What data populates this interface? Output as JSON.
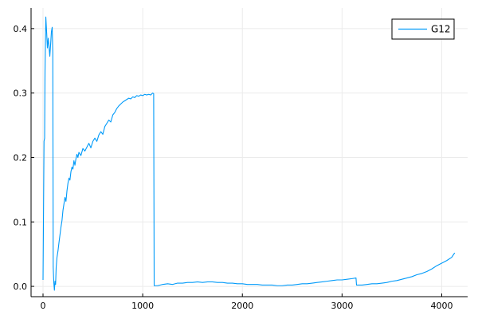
{
  "chart_data": {
    "type": "line",
    "title": "",
    "xlabel": "",
    "ylabel": "",
    "xlim": [
      -120,
      4260
    ],
    "ylim": [
      -0.016,
      0.432
    ],
    "x_ticks": [
      0,
      1000,
      2000,
      3000,
      4000
    ],
    "x_tick_labels": [
      "0",
      "1000",
      "2000",
      "3000",
      "4000"
    ],
    "y_ticks": [
      0.0,
      0.1,
      0.2,
      0.3,
      0.4
    ],
    "y_tick_labels": [
      "0.0",
      "0.1",
      "0.2",
      "0.3",
      "0.4"
    ],
    "grid": true,
    "legend_position": "top-right",
    "series": [
      {
        "name": "G12",
        "color": "#009af9",
        "points": [
          [
            0,
            0.01
          ],
          [
            10,
            0.225
          ],
          [
            16,
            0.23
          ],
          [
            20,
            0.335
          ],
          [
            28,
            0.418
          ],
          [
            36,
            0.395
          ],
          [
            44,
            0.37
          ],
          [
            52,
            0.385
          ],
          [
            60,
            0.372
          ],
          [
            68,
            0.357
          ],
          [
            76,
            0.375
          ],
          [
            84,
            0.395
          ],
          [
            92,
            0.402
          ],
          [
            98,
            0.362
          ],
          [
            102,
            0.03
          ],
          [
            108,
            0.006
          ],
          [
            114,
            -0.006
          ],
          [
            120,
            0.008
          ],
          [
            126,
            0.003
          ],
          [
            132,
            0.03
          ],
          [
            140,
            0.045
          ],
          [
            150,
            0.055
          ],
          [
            160,
            0.068
          ],
          [
            170,
            0.08
          ],
          [
            180,
            0.092
          ],
          [
            190,
            0.102
          ],
          [
            200,
            0.118
          ],
          [
            210,
            0.128
          ],
          [
            220,
            0.138
          ],
          [
            230,
            0.132
          ],
          [
            240,
            0.148
          ],
          [
            250,
            0.16
          ],
          [
            260,
            0.168
          ],
          [
            270,
            0.165
          ],
          [
            280,
            0.178
          ],
          [
            290,
            0.185
          ],
          [
            300,
            0.182
          ],
          [
            310,
            0.195
          ],
          [
            320,
            0.188
          ],
          [
            330,
            0.198
          ],
          [
            340,
            0.205
          ],
          [
            350,
            0.2
          ],
          [
            360,
            0.208
          ],
          [
            380,
            0.203
          ],
          [
            400,
            0.214
          ],
          [
            420,
            0.21
          ],
          [
            440,
            0.216
          ],
          [
            460,
            0.222
          ],
          [
            480,
            0.215
          ],
          [
            500,
            0.225
          ],
          [
            520,
            0.23
          ],
          [
            540,
            0.225
          ],
          [
            560,
            0.235
          ],
          [
            580,
            0.24
          ],
          [
            600,
            0.236
          ],
          [
            620,
            0.248
          ],
          [
            640,
            0.253
          ],
          [
            660,
            0.258
          ],
          [
            680,
            0.255
          ],
          [
            700,
            0.266
          ],
          [
            720,
            0.27
          ],
          [
            740,
            0.276
          ],
          [
            760,
            0.28
          ],
          [
            780,
            0.283
          ],
          [
            800,
            0.286
          ],
          [
            820,
            0.288
          ],
          [
            840,
            0.29
          ],
          [
            860,
            0.292
          ],
          [
            880,
            0.291
          ],
          [
            900,
            0.294
          ],
          [
            920,
            0.293
          ],
          [
            940,
            0.296
          ],
          [
            960,
            0.295
          ],
          [
            980,
            0.297
          ],
          [
            1000,
            0.296
          ],
          [
            1020,
            0.298
          ],
          [
            1040,
            0.297
          ],
          [
            1060,
            0.298
          ],
          [
            1080,
            0.297
          ],
          [
            1100,
            0.3
          ],
          [
            1110,
            0.299
          ],
          [
            1115,
            0.001
          ],
          [
            1150,
            0.001
          ],
          [
            1200,
            0.003
          ],
          [
            1250,
            0.004
          ],
          [
            1300,
            0.003
          ],
          [
            1350,
            0.005
          ],
          [
            1400,
            0.005
          ],
          [
            1450,
            0.006
          ],
          [
            1500,
            0.006
          ],
          [
            1550,
            0.007
          ],
          [
            1600,
            0.006
          ],
          [
            1650,
            0.007
          ],
          [
            1700,
            0.007
          ],
          [
            1750,
            0.006
          ],
          [
            1800,
            0.006
          ],
          [
            1850,
            0.005
          ],
          [
            1900,
            0.005
          ],
          [
            1950,
            0.004
          ],
          [
            2000,
            0.004
          ],
          [
            2050,
            0.003
          ],
          [
            2100,
            0.003
          ],
          [
            2150,
            0.003
          ],
          [
            2200,
            0.002
          ],
          [
            2250,
            0.002
          ],
          [
            2300,
            0.002
          ],
          [
            2350,
            0.001
          ],
          [
            2400,
            0.001
          ],
          [
            2450,
            0.002
          ],
          [
            2500,
            0.002
          ],
          [
            2550,
            0.003
          ],
          [
            2600,
            0.004
          ],
          [
            2650,
            0.004
          ],
          [
            2700,
            0.005
          ],
          [
            2750,
            0.006
          ],
          [
            2800,
            0.007
          ],
          [
            2850,
            0.008
          ],
          [
            2900,
            0.009
          ],
          [
            2950,
            0.01
          ],
          [
            3000,
            0.01
          ],
          [
            3050,
            0.011
          ],
          [
            3100,
            0.012
          ],
          [
            3140,
            0.013
          ],
          [
            3145,
            0.002
          ],
          [
            3200,
            0.002
          ],
          [
            3250,
            0.003
          ],
          [
            3300,
            0.004
          ],
          [
            3350,
            0.004
          ],
          [
            3400,
            0.005
          ],
          [
            3450,
            0.006
          ],
          [
            3500,
            0.008
          ],
          [
            3550,
            0.009
          ],
          [
            3600,
            0.011
          ],
          [
            3650,
            0.013
          ],
          [
            3700,
            0.015
          ],
          [
            3750,
            0.018
          ],
          [
            3800,
            0.02
          ],
          [
            3850,
            0.023
          ],
          [
            3900,
            0.027
          ],
          [
            3950,
            0.032
          ],
          [
            4000,
            0.036
          ],
          [
            4050,
            0.04
          ],
          [
            4100,
            0.045
          ],
          [
            4130,
            0.052
          ]
        ]
      }
    ]
  }
}
